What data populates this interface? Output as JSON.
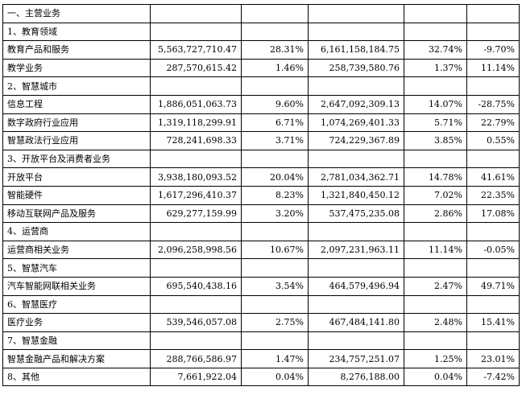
{
  "rows": [
    {
      "type": "section",
      "label": "一、主营业务"
    },
    {
      "type": "section",
      "label": "1、教育领域"
    },
    {
      "type": "data",
      "label": "教育产品和服务",
      "v1": "5,563,727,710.47",
      "p1": "28.31%",
      "v2": "6,161,158,184.75",
      "p2": "32.74%",
      "chg": "-9.70%"
    },
    {
      "type": "data",
      "label": "教学业务",
      "v1": "287,570,615.42",
      "p1": "1.46%",
      "v2": "258,739,580.76",
      "p2": "1.37%",
      "chg": "11.14%"
    },
    {
      "type": "section",
      "label": "2、智慧城市"
    },
    {
      "type": "data",
      "label": "信息工程",
      "v1": "1,886,051,063.73",
      "p1": "9.60%",
      "v2": "2,647,092,309.13",
      "p2": "14.07%",
      "chg": "-28.75%"
    },
    {
      "type": "data",
      "label": "数字政府行业应用",
      "v1": "1,319,118,299.91",
      "p1": "6.71%",
      "v2": "1,074,269,401.33",
      "p2": "5.71%",
      "chg": "22.79%"
    },
    {
      "type": "data",
      "label": "智慧政法行业应用",
      "v1": "728,241,698.33",
      "p1": "3.71%",
      "v2": "724,229,367.89",
      "p2": "3.85%",
      "chg": "0.55%"
    },
    {
      "type": "section",
      "label": "3、开放平台及消费者业务"
    },
    {
      "type": "data",
      "label": "开放平台",
      "v1": "3,938,180,093.52",
      "p1": "20.04%",
      "v2": "2,781,034,362.71",
      "p2": "14.78%",
      "chg": "41.61%"
    },
    {
      "type": "data",
      "label": "智能硬件",
      "v1": "1,617,296,410.37",
      "p1": "8.23%",
      "v2": "1,321,840,450.12",
      "p2": "7.02%",
      "chg": "22.35%"
    },
    {
      "type": "data",
      "label": "移动互联网产品及服务",
      "v1": "629,277,159.99",
      "p1": "3.20%",
      "v2": "537,475,235.08",
      "p2": "2.86%",
      "chg": "17.08%"
    },
    {
      "type": "section",
      "label": "4、运营商"
    },
    {
      "type": "data",
      "label": "运营商相关业务",
      "v1": "2,096,258,998.56",
      "p1": "10.67%",
      "v2": "2,097,231,963.11",
      "p2": "11.14%",
      "chg": "-0.05%"
    },
    {
      "type": "section",
      "label": "5、智慧汽车"
    },
    {
      "type": "data",
      "label": "汽车智能网联相关业务",
      "v1": "695,540,438.16",
      "p1": "3.54%",
      "v2": "464,579,496.94",
      "p2": "2.47%",
      "chg": "49.71%"
    },
    {
      "type": "section",
      "label": "6、智慧医疗"
    },
    {
      "type": "data",
      "label": "医疗业务",
      "v1": "539,546,057.08",
      "p1": "2.75%",
      "v2": "467,484,141.80",
      "p2": "2.48%",
      "chg": "15.41%"
    },
    {
      "type": "section",
      "label": "7、智慧金融"
    },
    {
      "type": "data",
      "label": "智慧金融产品和解决方案",
      "v1": "288,766,586.97",
      "p1": "1.47%",
      "v2": "234,757,251.07",
      "p2": "1.25%",
      "chg": "23.01%"
    },
    {
      "type": "data",
      "label": "8、其他",
      "v1": "7,661,922.04",
      "p1": "0.04%",
      "v2": "8,276,188.00",
      "p2": "0.04%",
      "chg": "-7.42%"
    }
  ]
}
